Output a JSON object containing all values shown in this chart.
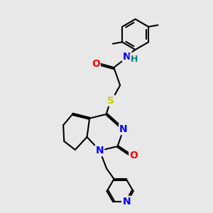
{
  "background_color": "#e8e8e8",
  "bond_color": "#000000",
  "atom_colors": {
    "N": "#0000ff",
    "O": "#ff0000",
    "S": "#cccc00",
    "H": "#008080",
    "C": "#000000"
  },
  "figsize": [
    3.0,
    3.0
  ],
  "dpi": 100
}
